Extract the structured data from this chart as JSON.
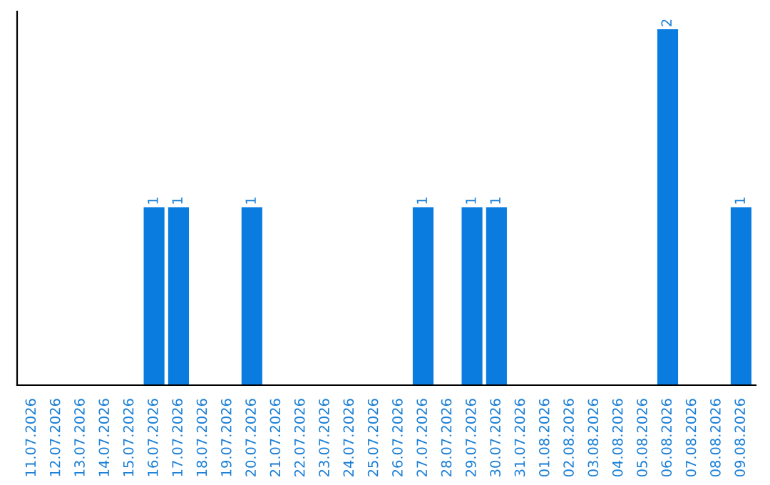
{
  "chart_data": {
    "type": "bar",
    "categories": [
      "11.07.2026",
      "12.07.2026",
      "13.07.2026",
      "14.07.2026",
      "15.07.2026",
      "16.07.2026",
      "17.07.2026",
      "18.07.2026",
      "19.07.2026",
      "20.07.2026",
      "21.07.2026",
      "22.07.2026",
      "23.07.2026",
      "24.07.2026",
      "25.07.2026",
      "26.07.2026",
      "27.07.2026",
      "28.07.2026",
      "29.07.2026",
      "30.07.2026",
      "31.07.2026",
      "01.08.2026",
      "02.08.2026",
      "03.08.2026",
      "04.08.2026",
      "05.08.2026",
      "06.08.2026",
      "07.08.2026",
      "08.08.2026",
      "09.08.2026"
    ],
    "values": [
      0,
      0,
      0,
      0,
      0,
      1,
      1,
      0,
      0,
      1,
      0,
      0,
      0,
      0,
      0,
      0,
      1,
      0,
      1,
      1,
      0,
      0,
      0,
      0,
      0,
      0,
      2,
      0,
      0,
      1
    ],
    "value_labels": [
      null,
      null,
      null,
      null,
      null,
      "1",
      "1",
      null,
      null,
      "1",
      null,
      null,
      null,
      null,
      null,
      null,
      "1",
      null,
      "1",
      "1",
      null,
      null,
      null,
      null,
      null,
      null,
      "2",
      null,
      null,
      "1"
    ],
    "color": "#0a7ce0",
    "grid": false,
    "legend": false
  }
}
